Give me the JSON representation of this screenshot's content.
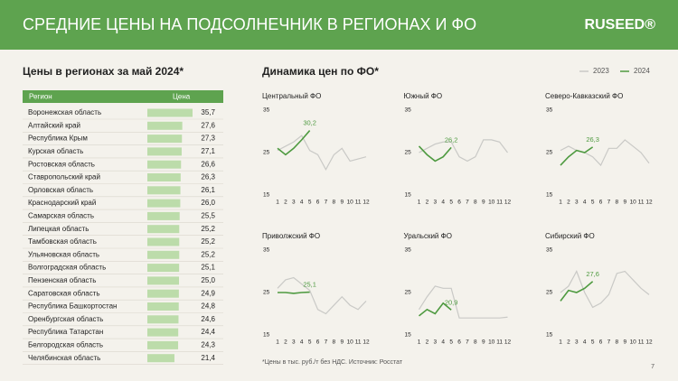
{
  "header": {
    "title": "СРЕДНИЕ ЦЕНЫ НА ПОДСОЛНЕЧНИК В РЕГИОНАХ И ФО",
    "logo": "RUSEED®"
  },
  "dynamics_title": "Динамика цен по ФО*",
  "footnote": "*Цены в тыс. руб./т без НДС. Источник: Росстат",
  "page_number": "7",
  "chart_data": [
    {
      "type": "bar",
      "orientation": "horizontal",
      "title": "Цены в регионах за май 2024*",
      "category_header": "Регион",
      "value_header": "Цена",
      "color": "#bcdcaa",
      "categories": [
        "Воронежская область",
        "Алтайский край",
        "Республика Крым",
        "Курская область",
        "Ростовская область",
        "Ставропольский край",
        "Орловская область",
        "Краснодарский край",
        "Самарская область",
        "Липецкая область",
        "Тамбовская область",
        "Ульяновская область",
        "Волгоградская область",
        "Пензенская область",
        "Саратовская область",
        "Республика Башкортостан",
        "Оренбургская область",
        "Республика Татарстан",
        "Белгородская область",
        "Челябинская область"
      ],
      "values": [
        35.7,
        27.6,
        27.3,
        27.1,
        26.6,
        26.3,
        26.1,
        26.0,
        25.5,
        25.2,
        25.2,
        25.2,
        25.1,
        25.0,
        24.9,
        24.8,
        24.6,
        24.4,
        24.3,
        21.4
      ],
      "value_labels": [
        "35,7",
        "27,6",
        "27,3",
        "27,1",
        "26,6",
        "26,3",
        "26,1",
        "26,0",
        "25,5",
        "25,2",
        "25,2",
        "25,2",
        "25,1",
        "25,0",
        "24,9",
        "24,8",
        "24,6",
        "24,4",
        "24,3",
        "21,4"
      ]
    },
    {
      "type": "line",
      "title": "Центральный ФО",
      "x": [
        1,
        2,
        3,
        4,
        5,
        6,
        7,
        8,
        9,
        10,
        11,
        12
      ],
      "xlim": [
        1,
        12
      ],
      "xticks": [
        1,
        2,
        3,
        4,
        5,
        6,
        7,
        8,
        9,
        10,
        11,
        12
      ],
      "ylim": [
        15,
        35
      ],
      "yticks": [
        15,
        25,
        35
      ],
      "series": [
        {
          "name": "2023",
          "color": "#c9c9c6",
          "values": [
            25.5,
            26.5,
            27.5,
            29,
            25.5,
            24.5,
            21,
            24.5,
            26,
            23,
            23.5,
            24
          ]
        },
        {
          "name": "2024",
          "color": "#4e9a40",
          "values": [
            26,
            24.5,
            26,
            28,
            30.2,
            null,
            null,
            null,
            null,
            null,
            null,
            null
          ],
          "value_labels": [
            null,
            null,
            null,
            null,
            "30,2",
            null,
            null,
            null,
            null,
            null,
            null,
            null
          ]
        }
      ]
    },
    {
      "type": "line",
      "title": "Южный ФО",
      "x": [
        1,
        2,
        3,
        4,
        5,
        6,
        7,
        8,
        9,
        10,
        11,
        12
      ],
      "xlim": [
        1,
        12
      ],
      "xticks": [
        1,
        2,
        3,
        4,
        5,
        6,
        7,
        8,
        9,
        10,
        11,
        12
      ],
      "ylim": [
        15,
        35
      ],
      "yticks": [
        15,
        25,
        35
      ],
      "series": [
        {
          "name": "2023",
          "color": "#c9c9c6",
          "values": [
            25,
            26,
            27,
            27.5,
            27.5,
            24,
            23,
            24,
            28,
            28,
            27.5,
            25
          ]
        },
        {
          "name": "2024",
          "color": "#4e9a40",
          "values": [
            26.5,
            24.5,
            23,
            24,
            26.2,
            null,
            null,
            null,
            null,
            null,
            null,
            null
          ],
          "value_labels": [
            null,
            null,
            null,
            null,
            "26,2",
            null,
            null,
            null,
            null,
            null,
            null,
            null
          ]
        }
      ]
    },
    {
      "type": "line",
      "title": "Северо-Кавказский ФО",
      "x": [
        1,
        2,
        3,
        4,
        5,
        6,
        7,
        8,
        9,
        10,
        11,
        12
      ],
      "xlim": [
        1,
        12
      ],
      "xticks": [
        1,
        2,
        3,
        4,
        5,
        6,
        7,
        8,
        9,
        10,
        11,
        12
      ],
      "ylim": [
        15,
        35
      ],
      "yticks": [
        15,
        25,
        35
      ],
      "series": [
        {
          "name": "2023",
          "color": "#c9c9c6",
          "values": [
            25.5,
            26.5,
            25.5,
            25,
            24,
            22,
            26,
            26,
            28,
            26.5,
            25,
            22.5
          ]
        },
        {
          "name": "2024",
          "color": "#4e9a40",
          "values": [
            22,
            24,
            25.5,
            25,
            26.3,
            null,
            null,
            null,
            null,
            null,
            null,
            null
          ],
          "value_labels": [
            null,
            null,
            null,
            null,
            "26,3",
            null,
            null,
            null,
            null,
            null,
            null,
            null
          ]
        }
      ]
    },
    {
      "type": "line",
      "title": "Приволжский ФО",
      "x": [
        1,
        2,
        3,
        4,
        5,
        6,
        7,
        8,
        9,
        10,
        11,
        12
      ],
      "xlim": [
        1,
        12
      ],
      "xticks": [
        1,
        2,
        3,
        4,
        5,
        6,
        7,
        8,
        9,
        10,
        11,
        12
      ],
      "ylim": [
        15,
        35
      ],
      "yticks": [
        15,
        25,
        35
      ],
      "series": [
        {
          "name": "2023",
          "color": "#c9c9c6",
          "values": [
            26,
            28,
            28.5,
            27,
            25.5,
            21,
            20,
            22,
            24,
            22,
            21,
            23
          ]
        },
        {
          "name": "2024",
          "color": "#4e9a40",
          "values": [
            25,
            25,
            24.8,
            25,
            25.1,
            null,
            null,
            null,
            null,
            null,
            null,
            null
          ],
          "value_labels": [
            null,
            null,
            null,
            null,
            "25,1",
            null,
            null,
            null,
            null,
            null,
            null,
            null
          ]
        }
      ]
    },
    {
      "type": "line",
      "title": "Уральский ФО",
      "x": [
        1,
        2,
        3,
        4,
        5,
        6,
        7,
        8,
        9,
        10,
        11,
        12
      ],
      "xlim": [
        1,
        12
      ],
      "xticks": [
        1,
        2,
        3,
        4,
        5,
        6,
        7,
        8,
        9,
        10,
        11,
        12
      ],
      "ylim": [
        15,
        35
      ],
      "yticks": [
        15,
        25,
        35
      ],
      "series": [
        {
          "name": "2023",
          "color": "#c9c9c6",
          "values": [
            21,
            24,
            26.5,
            26,
            26,
            19,
            19,
            19,
            19,
            19,
            19,
            19.2
          ]
        },
        {
          "name": "2024",
          "color": "#4e9a40",
          "values": [
            19.5,
            21,
            20,
            22.5,
            20.9,
            null,
            null,
            null,
            null,
            null,
            null,
            null
          ],
          "value_labels": [
            null,
            null,
            null,
            null,
            "20,9",
            null,
            null,
            null,
            null,
            null,
            null,
            null
          ]
        }
      ]
    },
    {
      "type": "line",
      "title": "Сибирский ФО",
      "x": [
        1,
        2,
        3,
        4,
        5,
        6,
        7,
        8,
        9,
        10,
        11,
        12
      ],
      "xlim": [
        1,
        12
      ],
      "xticks": [
        1,
        2,
        3,
        4,
        5,
        6,
        7,
        8,
        9,
        10,
        11,
        12
      ],
      "ylim": [
        15,
        35
      ],
      "yticks": [
        15,
        25,
        35
      ],
      "series": [
        {
          "name": "2023",
          "color": "#c9c9c6",
          "values": [
            25,
            26.5,
            30,
            25,
            21.5,
            22.5,
            24.5,
            29.5,
            30,
            28,
            26,
            24.5
          ]
        },
        {
          "name": "2024",
          "color": "#4e9a40",
          "values": [
            23,
            25.5,
            25,
            26,
            27.6,
            null,
            null,
            null,
            null,
            null,
            null,
            null
          ],
          "value_labels": [
            null,
            null,
            null,
            null,
            "27,6",
            null,
            null,
            null,
            null,
            null,
            null,
            null
          ]
        }
      ]
    }
  ]
}
